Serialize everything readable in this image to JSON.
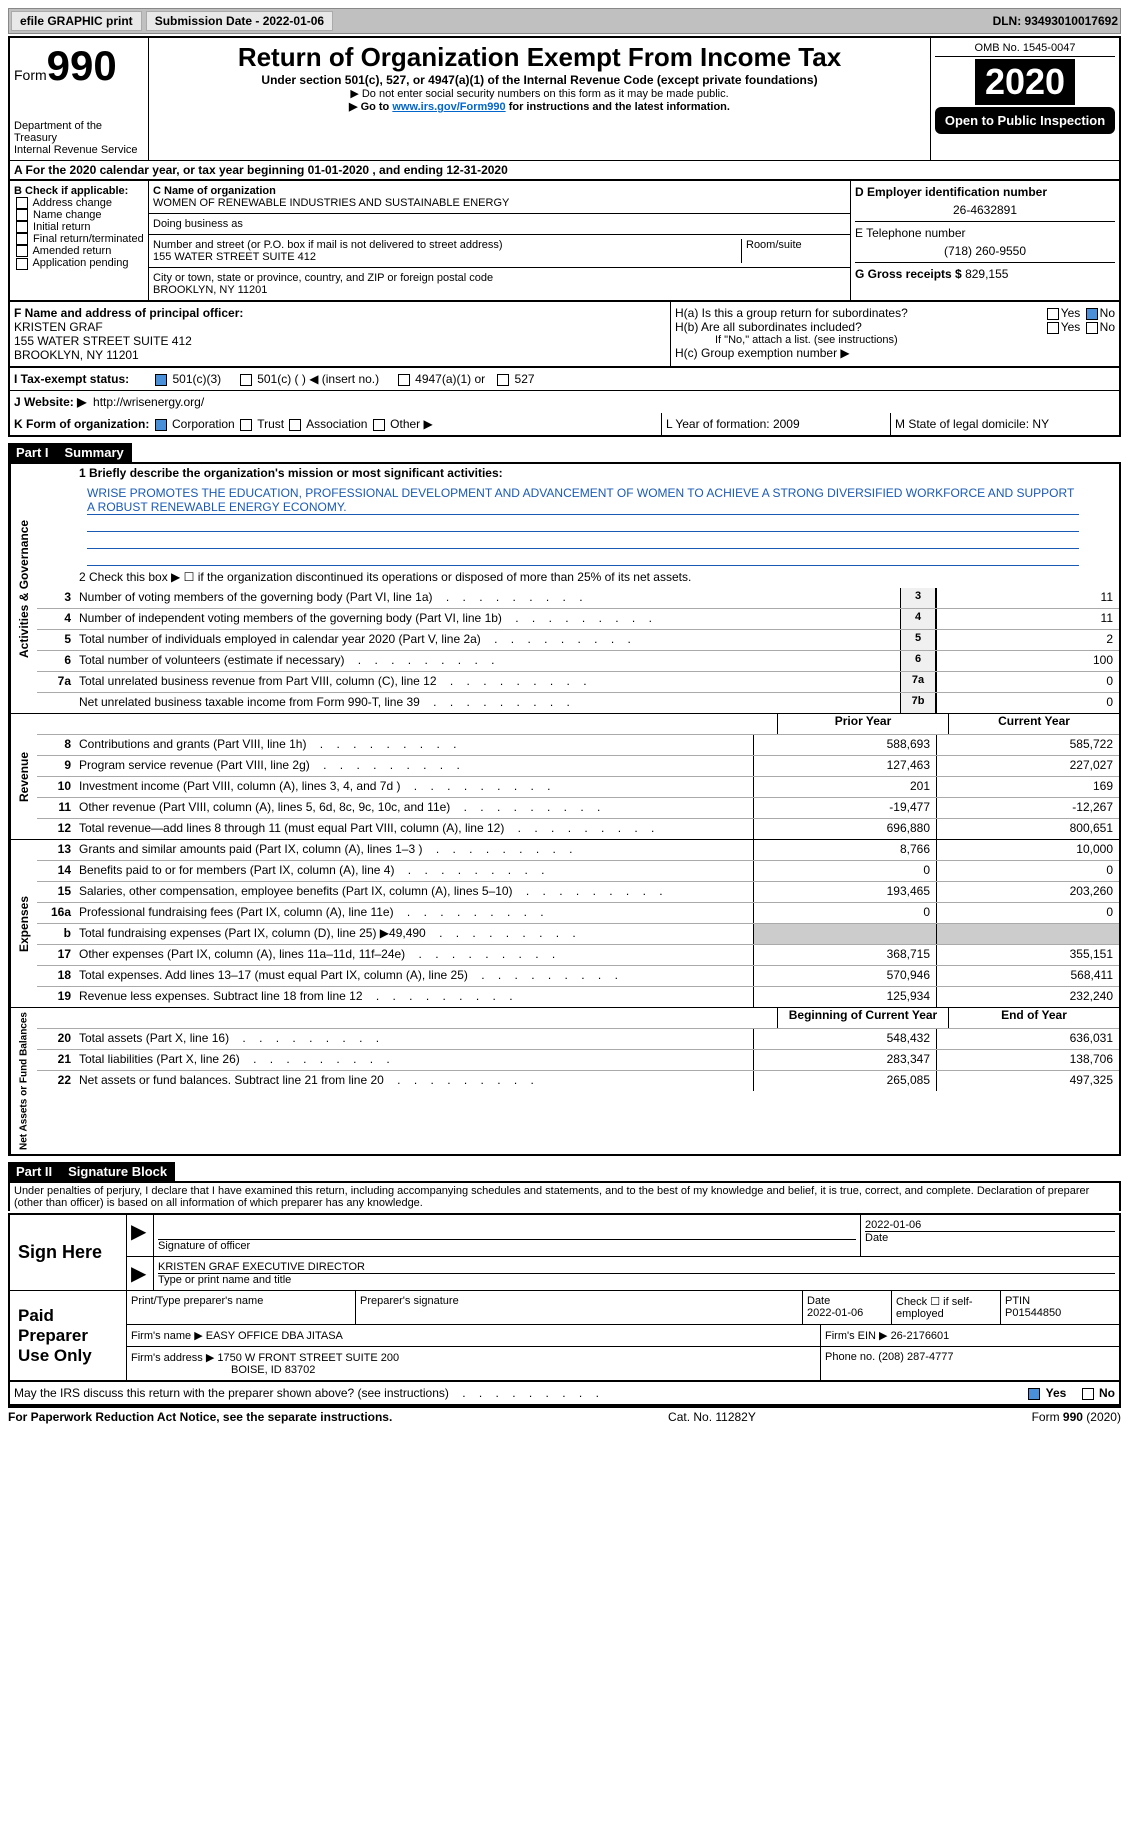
{
  "topbar": {
    "efile": "efile GRAPHIC print",
    "submission": "Submission Date - 2022-01-06",
    "dln": "DLN: 93493010017692"
  },
  "header": {
    "form_label": "Form",
    "form_number": "990",
    "dept1": "Department of the Treasury",
    "dept2": "Internal Revenue Service",
    "title": "Return of Organization Exempt From Income Tax",
    "subtitle": "Under section 501(c), 527, or 4947(a)(1) of the Internal Revenue Code (except private foundations)",
    "note1": "▶ Do not enter social security numbers on this form as it may be made public.",
    "note2a": "▶ Go to ",
    "note2_link": "www.irs.gov/Form990",
    "note2b": " for instructions and the latest information.",
    "omb": "OMB No. 1545-0047",
    "year": "2020",
    "open_public": "Open to Public Inspection"
  },
  "row_a": "A For the 2020 calendar year, or tax year beginning 01-01-2020    , and ending 12-31-2020",
  "col_b": {
    "label": "B Check if applicable:",
    "items": [
      "Address change",
      "Name change",
      "Initial return",
      "Final return/terminated",
      "Amended return",
      "Application pending"
    ]
  },
  "col_c": {
    "name_label": "C Name of organization",
    "name": "WOMEN OF RENEWABLE INDUSTRIES AND SUSTAINABLE ENERGY",
    "dba_label": "Doing business as",
    "addr_label": "Number and street (or P.O. box if mail is not delivered to street address)",
    "room_label": "Room/suite",
    "addr": "155 WATER STREET SUITE 412",
    "city_label": "City or town, state or province, country, and ZIP or foreign postal code",
    "city": "BROOKLYN, NY  11201"
  },
  "col_d": {
    "d_label": "D Employer identification number",
    "d_val": "26-4632891",
    "e_label": "E Telephone number",
    "e_val": "(718) 260-9550",
    "g_label": "G Gross receipts $",
    "g_val": "829,155"
  },
  "row_f": {
    "f_label": "F  Name and address of principal officer:",
    "f_name": "KRISTEN GRAF",
    "f_addr1": "155 WATER STREET SUITE 412",
    "f_addr2": "BROOKLYN, NY  11201",
    "ha": "H(a)  Is this a group return for subordinates?",
    "hb": "H(b)  Are all subordinates included?",
    "hb_note": "If \"No,\" attach a list. (see instructions)",
    "hc": "H(c)  Group exemption number ▶",
    "yes": "Yes",
    "no": "No"
  },
  "tax_status": {
    "label": "I   Tax-exempt status:",
    "opt1": "501(c)(3)",
    "opt2": "501(c) (  ) ◀ (insert no.)",
    "opt3": "4947(a)(1) or",
    "opt4": "527"
  },
  "website": {
    "label": "J   Website: ▶",
    "val": "http://wrisenergy.org/"
  },
  "row_k": {
    "k_label": "K Form of organization:",
    "k1": "Corporation",
    "k2": "Trust",
    "k3": "Association",
    "k4": "Other ▶",
    "l": "L Year of formation: 2009",
    "m": "M State of legal domicile: NY"
  },
  "part1": {
    "part": "Part I",
    "title": "Summary",
    "line1_label": "1   Briefly describe the organization's mission or most significant activities:",
    "mission": "WRISE PROMOTES THE EDUCATION, PROFESSIONAL DEVELOPMENT AND ADVANCEMENT OF WOMEN TO ACHIEVE A STRONG DIVERSIFIED WORKFORCE AND SUPPORT A ROBUST RENEWABLE ENERGY ECONOMY.",
    "line2": "2   Check this box ▶ ☐  if the organization discontinued its operations or disposed of more than 25% of its net assets.",
    "gov_label": "Activities & Governance",
    "rev_label": "Revenue",
    "exp_label": "Expenses",
    "net_label": "Net Assets or Fund Balances",
    "hdr_prior": "Prior Year",
    "hdr_current": "Current Year",
    "hdr_beg": "Beginning of Current Year",
    "hdr_end": "End of Year",
    "lines_gov": [
      {
        "n": "3",
        "d": "Number of voting members of the governing body (Part VI, line 1a)",
        "b": "3",
        "v": "11"
      },
      {
        "n": "4",
        "d": "Number of independent voting members of the governing body (Part VI, line 1b)",
        "b": "4",
        "v": "11"
      },
      {
        "n": "5",
        "d": "Total number of individuals employed in calendar year 2020 (Part V, line 2a)",
        "b": "5",
        "v": "2"
      },
      {
        "n": "6",
        "d": "Total number of volunteers (estimate if necessary)",
        "b": "6",
        "v": "100"
      },
      {
        "n": "7a",
        "d": "Total unrelated business revenue from Part VIII, column (C), line 12",
        "b": "7a",
        "v": "0"
      },
      {
        "n": "",
        "d": "Net unrelated business taxable income from Form 990-T, line 39",
        "b": "7b",
        "v": "0"
      }
    ],
    "lines_rev": [
      {
        "n": "8",
        "d": "Contributions and grants (Part VIII, line 1h)",
        "p": "588,693",
        "c": "585,722"
      },
      {
        "n": "9",
        "d": "Program service revenue (Part VIII, line 2g)",
        "p": "127,463",
        "c": "227,027"
      },
      {
        "n": "10",
        "d": "Investment income (Part VIII, column (A), lines 3, 4, and 7d )",
        "p": "201",
        "c": "169"
      },
      {
        "n": "11",
        "d": "Other revenue (Part VIII, column (A), lines 5, 6d, 8c, 9c, 10c, and 11e)",
        "p": "-19,477",
        "c": "-12,267"
      },
      {
        "n": "12",
        "d": "Total revenue—add lines 8 through 11 (must equal Part VIII, column (A), line 12)",
        "p": "696,880",
        "c": "800,651"
      }
    ],
    "lines_exp": [
      {
        "n": "13",
        "d": "Grants and similar amounts paid (Part IX, column (A), lines 1–3 )",
        "p": "8,766",
        "c": "10,000"
      },
      {
        "n": "14",
        "d": "Benefits paid to or for members (Part IX, column (A), line 4)",
        "p": "0",
        "c": "0"
      },
      {
        "n": "15",
        "d": "Salaries, other compensation, employee benefits (Part IX, column (A), lines 5–10)",
        "p": "193,465",
        "c": "203,260"
      },
      {
        "n": "16a",
        "d": "Professional fundraising fees (Part IX, column (A), line 11e)",
        "p": "0",
        "c": "0"
      },
      {
        "n": "b",
        "d": "Total fundraising expenses (Part IX, column (D), line 25) ▶49,490",
        "p": "",
        "c": "",
        "gray": true
      },
      {
        "n": "17",
        "d": "Other expenses (Part IX, column (A), lines 11a–11d, 11f–24e)",
        "p": "368,715",
        "c": "355,151"
      },
      {
        "n": "18",
        "d": "Total expenses. Add lines 13–17 (must equal Part IX, column (A), line 25)",
        "p": "570,946",
        "c": "568,411"
      },
      {
        "n": "19",
        "d": "Revenue less expenses. Subtract line 18 from line 12",
        "p": "125,934",
        "c": "232,240"
      }
    ],
    "lines_net": [
      {
        "n": "20",
        "d": "Total assets (Part X, line 16)",
        "p": "548,432",
        "c": "636,031"
      },
      {
        "n": "21",
        "d": "Total liabilities (Part X, line 26)",
        "p": "283,347",
        "c": "138,706"
      },
      {
        "n": "22",
        "d": "Net assets or fund balances. Subtract line 21 from line 20",
        "p": "265,085",
        "c": "497,325"
      }
    ]
  },
  "part2": {
    "part": "Part II",
    "title": "Signature Block",
    "decl": "Under penalties of perjury, I declare that I have examined this return, including accompanying schedules and statements, and to the best of my knowledge and belief, it is true, correct, and complete. Declaration of preparer (other than officer) is based on all information of which preparer has any knowledge.",
    "sign_here": "Sign Here",
    "sig_officer": "Signature of officer",
    "date_label": "Date",
    "date_val": "2022-01-06",
    "name_title": "KRISTEN GRAF  EXECUTIVE DIRECTOR",
    "name_label": "Type or print name and title",
    "paid": "Paid Preparer Use Only",
    "prep_name": "Print/Type preparer's name",
    "prep_sig": "Preparer's signature",
    "prep_date": "2022-01-06",
    "check_self": "Check ☐ if self-employed",
    "ptin_label": "PTIN",
    "ptin": "P01544850",
    "firm_name_label": "Firm's name    ▶",
    "firm_name": "EASY OFFICE DBA JITASA",
    "firm_ein_label": "Firm's EIN ▶",
    "firm_ein": "26-2176601",
    "firm_addr_label": "Firm's address ▶",
    "firm_addr1": "1750 W FRONT STREET SUITE 200",
    "firm_addr2": "BOISE, ID  83702",
    "phone_label": "Phone no.",
    "phone": "(208) 287-4777",
    "discuss": "May the IRS discuss this return with the preparer shown above? (see instructions)",
    "yes": "Yes",
    "no": "No"
  },
  "footer": {
    "pra": "For Paperwork Reduction Act Notice, see the separate instructions.",
    "cat": "Cat. No. 11282Y",
    "form": "Form 990 (2020)"
  }
}
